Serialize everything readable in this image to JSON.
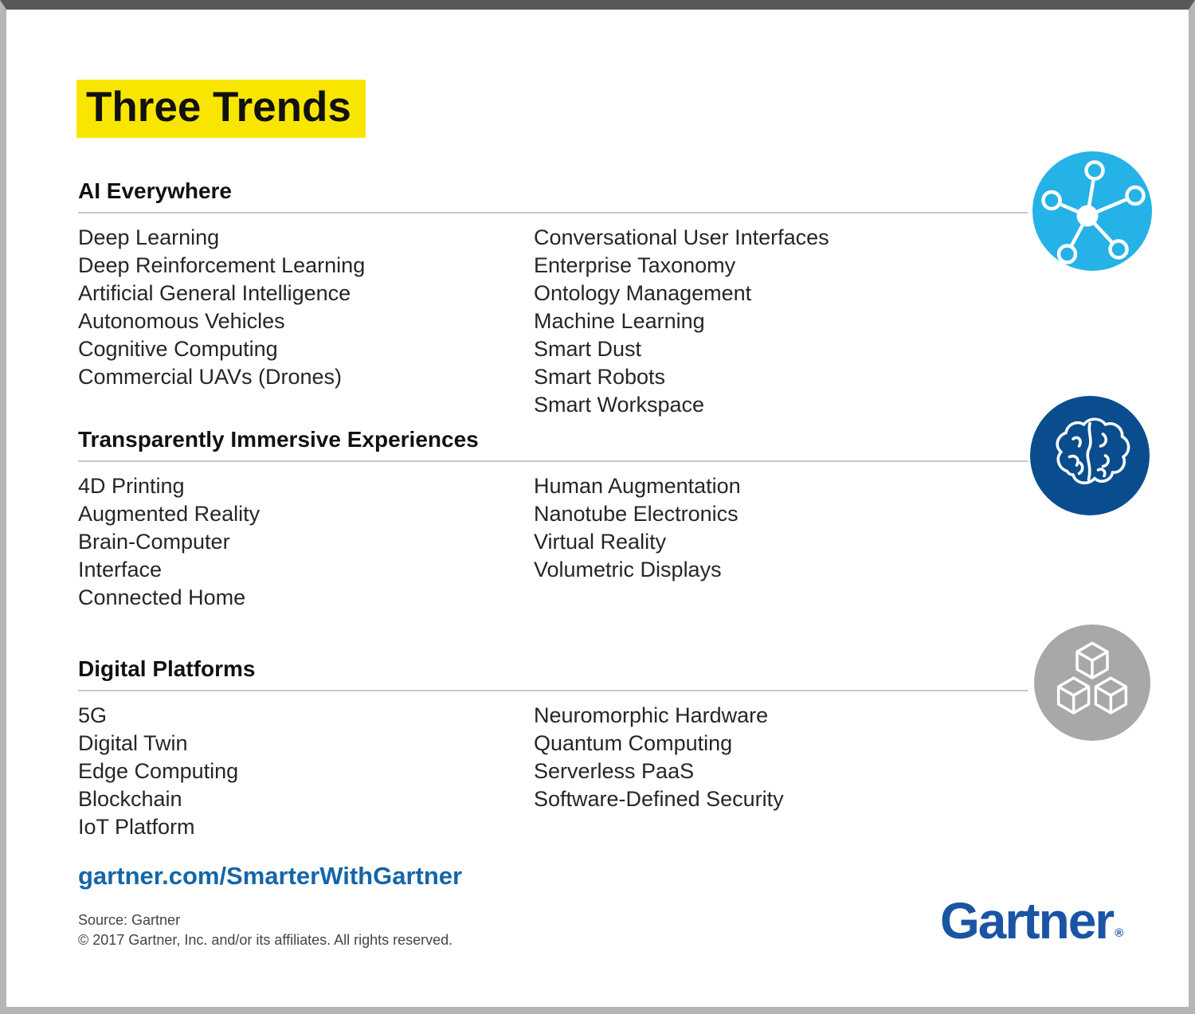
{
  "title": "Three Trends",
  "sections": [
    {
      "heading": "AI Everywhere",
      "icon": "network-icon",
      "columns": [
        [
          "Deep Learning",
          "Deep Reinforcement Learning",
          "Artificial General Intelligence",
          "Autonomous Vehicles",
          "Cognitive Computing",
          "Commercial UAVs (Drones)"
        ],
        [
          "Conversational User Interfaces",
          "Enterprise Taxonomy",
          "Ontology Management",
          "Machine Learning",
          "Smart Dust",
          "Smart Robots",
          "Smart Workspace"
        ]
      ]
    },
    {
      "heading": "Transparently Immersive Experiences",
      "icon": "brain-icon",
      "columns": [
        [
          "4D Printing",
          "Augmented Reality",
          "Brain-Computer",
          "Interface",
          "Connected Home"
        ],
        [
          "Human Augmentation",
          "Nanotube Electronics",
          "Virtual Reality",
          "Volumetric Displays"
        ]
      ]
    },
    {
      "heading": "Digital Platforms",
      "icon": "cubes-icon",
      "columns": [
        [
          "5G",
          "Digital Twin",
          "Edge Computing",
          "Blockchain",
          "IoT Platform"
        ],
        [
          "Neuromorphic Hardware",
          "Quantum Computing",
          "Serverless PaaS",
          "Software-Defined Security"
        ]
      ]
    }
  ],
  "footer": {
    "link": "gartner.com/SmarterWithGartner",
    "source": "Source: Gartner",
    "copyright": "© 2017 Gartner, Inc. and/or its affiliates. All rights reserved.",
    "logo": "Gartner",
    "registered_mark": "®"
  },
  "colors": {
    "highlight_yellow": "#F9E600",
    "ai_icon_bg": "#24B2E7",
    "immersive_icon_bg": "#0A4D8E",
    "platforms_icon_bg": "#A7A8AA",
    "icon_stroke": "#FFFFFF",
    "link_blue": "#1565A8",
    "logo_blue": "#1A55A4"
  }
}
